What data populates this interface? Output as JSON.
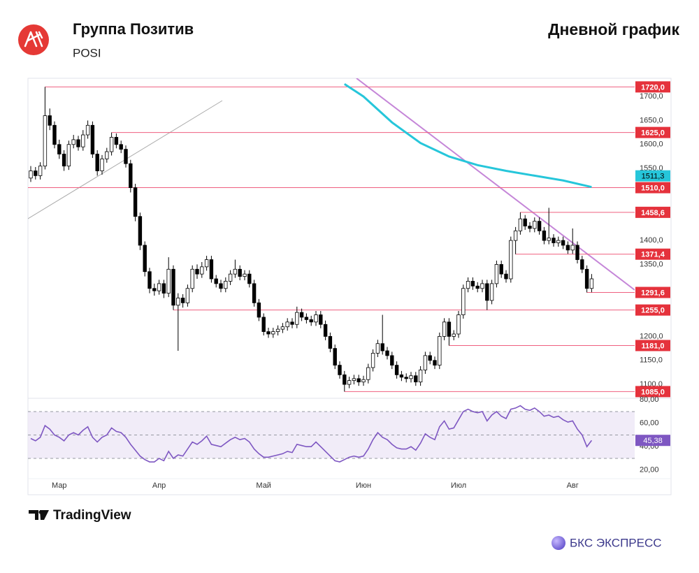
{
  "header": {
    "title": "Группа Позитив",
    "ticker": "POSI",
    "subtitle": "Дневной график"
  },
  "footer": {
    "source": "TradingView",
    "brand": "БКС ЭКСПРЕСС"
  },
  "chart_data": {
    "type": "candlestick",
    "categories": [
      null,
      null,
      null,
      null,
      null,
      null,
      "Мар",
      null,
      null,
      null,
      null,
      null,
      null,
      null,
      null,
      null,
      null,
      null,
      null,
      null,
      null,
      null,
      null,
      null,
      null,
      null,
      null,
      "Апр",
      null,
      null,
      null,
      null,
      null,
      null,
      null,
      null,
      null,
      null,
      null,
      null,
      null,
      null,
      null,
      null,
      null,
      null,
      null,
      null,
      null,
      "Май",
      null,
      null,
      null,
      null,
      null,
      null,
      null,
      null,
      null,
      null,
      null,
      null,
      null,
      null,
      null,
      null,
      null,
      null,
      null,
      null,
      "Июн",
      null,
      null,
      null,
      null,
      null,
      null,
      null,
      null,
      null,
      null,
      null,
      null,
      null,
      null,
      null,
      null,
      null,
      null,
      null,
      "Июл",
      null,
      null,
      null,
      null,
      null,
      null,
      null,
      null,
      null,
      null,
      null,
      null,
      null,
      null,
      null,
      null,
      null,
      null,
      null,
      null,
      null,
      null,
      null,
      "Авг",
      null,
      null,
      null,
      null
    ],
    "open": [
      1530,
      1545,
      1535,
      1555,
      1660,
      1640,
      1600,
      1580,
      1555,
      1600,
      1610,
      1595,
      1620,
      1640,
      1580,
      1545,
      1570,
      1585,
      1615,
      1600,
      1590,
      1560,
      1510,
      1450,
      1390,
      1335,
      1300,
      1295,
      1310,
      1290,
      1340,
      1265,
      1280,
      1270,
      1300,
      1340,
      1330,
      1345,
      1360,
      1320,
      1310,
      1300,
      1315,
      1330,
      1340,
      1325,
      1330,
      1310,
      1270,
      1240,
      1210,
      1205,
      1210,
      1215,
      1220,
      1230,
      1225,
      1250,
      1240,
      1235,
      1230,
      1245,
      1225,
      1200,
      1175,
      1140,
      1120,
      1100,
      1108,
      1112,
      1105,
      1110,
      1135,
      1165,
      1185,
      1170,
      1160,
      1140,
      1120,
      1115,
      1112,
      1118,
      1105,
      1130,
      1160,
      1150,
      1140,
      1200,
      1230,
      1200,
      1205,
      1245,
      1300,
      1315,
      1305,
      1300,
      1310,
      1275,
      1310,
      1350,
      1330,
      1320,
      1400,
      1420,
      1445,
      1430,
      1425,
      1440,
      1420,
      1400,
      1405,
      1395,
      1400,
      1390,
      1380,
      1390,
      1360,
      1340,
      1300
    ],
    "high": [
      1555,
      1553,
      1563,
      1720,
      1675,
      1648,
      1610,
      1588,
      1608,
      1620,
      1618,
      1630,
      1650,
      1648,
      1588,
      1578,
      1593,
      1625,
      1623,
      1608,
      1598,
      1568,
      1518,
      1458,
      1398,
      1343,
      1310,
      1318,
      1318,
      1365,
      1348,
      1290,
      1288,
      1308,
      1348,
      1350,
      1355,
      1368,
      1368,
      1328,
      1318,
      1323,
      1338,
      1360,
      1348,
      1338,
      1338,
      1318,
      1278,
      1248,
      1218,
      1218,
      1223,
      1228,
      1238,
      1238,
      1262,
      1258,
      1248,
      1243,
      1253,
      1253,
      1233,
      1208,
      1183,
      1148,
      1128,
      1116,
      1120,
      1120,
      1118,
      1143,
      1173,
      1193,
      1245,
      1178,
      1168,
      1148,
      1128,
      1123,
      1126,
      1126,
      1138,
      1168,
      1168,
      1158,
      1208,
      1238,
      1238,
      1213,
      1253,
      1308,
      1323,
      1323,
      1313,
      1318,
      1318,
      1318,
      1358,
      1358,
      1338,
      1408,
      1428,
      1458.6,
      1453,
      1438,
      1448,
      1448,
      1428,
      1468,
      1413,
      1408,
      1408,
      1398,
      1425,
      1398,
      1368,
      1348,
      1330
    ],
    "low": [
      1522,
      1527,
      1527,
      1548,
      1630,
      1592,
      1570,
      1545,
      1547,
      1592,
      1587,
      1587,
      1612,
      1572,
      1535,
      1537,
      1562,
      1577,
      1592,
      1582,
      1552,
      1500,
      1440,
      1380,
      1325,
      1290,
      1285,
      1287,
      1280,
      1282,
      1255,
      1170,
      1260,
      1262,
      1292,
      1320,
      1322,
      1337,
      1312,
      1302,
      1292,
      1292,
      1307,
      1322,
      1317,
      1317,
      1302,
      1262,
      1232,
      1202,
      1197,
      1197,
      1202,
      1207,
      1212,
      1217,
      1217,
      1232,
      1227,
      1222,
      1222,
      1217,
      1192,
      1167,
      1132,
      1112,
      1085,
      1092,
      1100,
      1097,
      1097,
      1102,
      1127,
      1157,
      1162,
      1152,
      1132,
      1112,
      1107,
      1104,
      1104,
      1097,
      1097,
      1122,
      1142,
      1132,
      1132,
      1192,
      1181,
      1192,
      1197,
      1237,
      1292,
      1297,
      1292,
      1292,
      1255,
      1267,
      1302,
      1322,
      1312,
      1312,
      1371.4,
      1412,
      1422,
      1417,
      1417,
      1412,
      1392,
      1392,
      1387,
      1387,
      1382,
      1372,
      1372,
      1352,
      1332,
      1291.6,
      1292
    ],
    "close": [
      1545,
      1535,
      1555,
      1660,
      1640,
      1600,
      1580,
      1555,
      1600,
      1610,
      1595,
      1620,
      1640,
      1580,
      1545,
      1570,
      1585,
      1615,
      1600,
      1590,
      1560,
      1510,
      1450,
      1390,
      1335,
      1300,
      1295,
      1310,
      1290,
      1340,
      1265,
      1280,
      1270,
      1300,
      1340,
      1330,
      1345,
      1360,
      1320,
      1310,
      1300,
      1315,
      1330,
      1340,
      1325,
      1330,
      1310,
      1270,
      1240,
      1210,
      1205,
      1210,
      1215,
      1220,
      1230,
      1225,
      1250,
      1240,
      1235,
      1230,
      1245,
      1225,
      1200,
      1175,
      1140,
      1120,
      1100,
      1108,
      1112,
      1105,
      1110,
      1135,
      1165,
      1185,
      1170,
      1160,
      1140,
      1120,
      1115,
      1112,
      1118,
      1105,
      1130,
      1160,
      1150,
      1140,
      1200,
      1230,
      1200,
      1205,
      1245,
      1300,
      1315,
      1305,
      1300,
      1310,
      1275,
      1310,
      1350,
      1330,
      1320,
      1400,
      1420,
      1445,
      1430,
      1425,
      1440,
      1420,
      1400,
      1405,
      1395,
      1400,
      1390,
      1380,
      1390,
      1360,
      1340,
      1300,
      1320
    ],
    "up_color": "#ffffff",
    "down_color": "#000000",
    "ylim": [
      1071,
      1738
    ],
    "yticks": [
      {
        "value": 1100,
        "label": "1100,0"
      },
      {
        "value": 1150,
        "label": "1150,0"
      },
      {
        "value": 1200,
        "label": "1200,0"
      },
      {
        "value": 1350,
        "label": "1350,0"
      },
      {
        "value": 1400,
        "label": "1400,0"
      },
      {
        "value": 1550,
        "label": "1550,0"
      },
      {
        "value": 1600,
        "label": "1600,0"
      },
      {
        "value": 1650,
        "label": "1650,0"
      },
      {
        "value": 1700,
        "label": "1700,0"
      }
    ],
    "levels": [
      {
        "value": 1720,
        "label": "1720,0"
      },
      {
        "value": 1625,
        "label": "1625,0"
      },
      {
        "value": 1510,
        "label": "1510,0"
      },
      {
        "value": 1458.6,
        "label": "1458,6"
      },
      {
        "value": 1371.4,
        "label": "1371,4"
      },
      {
        "value": 1291.6,
        "label": "1291,6"
      },
      {
        "value": 1255,
        "label": "1255,0"
      },
      {
        "value": 1181,
        "label": "1181,0"
      },
      {
        "value": 1085,
        "label": "1085,0"
      }
    ],
    "level_color": "#ef5f7f",
    "level_label_color": "#e5323c",
    "ma": {
      "color": "#26c6da",
      "x": [
        66,
        70,
        76,
        82,
        88,
        94,
        100,
        106,
        112,
        118
      ],
      "values": [
        1726,
        1700,
        1646,
        1603,
        1575,
        1557,
        1545,
        1535,
        1525,
        1511.3
      ],
      "last_label": "1511,3"
    },
    "rsi": {
      "color": "#7e57c2",
      "ylim": [
        12.7,
        81.3
      ],
      "levels": [
        30,
        50,
        70
      ],
      "yticks": [
        {
          "value": 80,
          "label": "80,00"
        },
        {
          "value": 60,
          "label": "60,00"
        },
        {
          "value": 40,
          "label": "40,00"
        },
        {
          "value": 20,
          "label": "20,00"
        }
      ],
      "values": [
        47,
        45,
        48,
        58,
        55,
        50,
        48,
        45,
        50,
        52,
        50,
        54,
        57,
        48,
        44,
        48,
        50,
        56,
        53,
        52,
        48,
        42,
        37,
        32,
        29,
        27,
        27,
        30,
        28,
        36,
        30,
        33,
        32,
        38,
        44,
        42,
        45,
        49,
        42,
        41,
        40,
        43,
        46,
        48,
        46,
        47,
        44,
        38,
        34,
        31,
        31,
        32,
        33,
        34,
        36,
        35,
        42,
        41,
        40,
        40,
        44,
        40,
        36,
        32,
        28,
        27,
        29,
        31,
        32,
        31,
        32,
        38,
        46,
        52,
        48,
        46,
        42,
        39,
        38,
        38,
        40,
        37,
        43,
        51,
        48,
        46,
        57,
        62,
        55,
        56,
        63,
        70,
        72,
        70,
        69,
        70,
        62,
        67,
        70,
        66,
        64,
        72,
        73,
        75,
        72,
        71,
        73,
        70,
        66,
        67,
        65,
        66,
        63,
        61,
        62,
        55,
        50,
        40,
        45.38
      ],
      "last_label": "45,38"
    }
  }
}
